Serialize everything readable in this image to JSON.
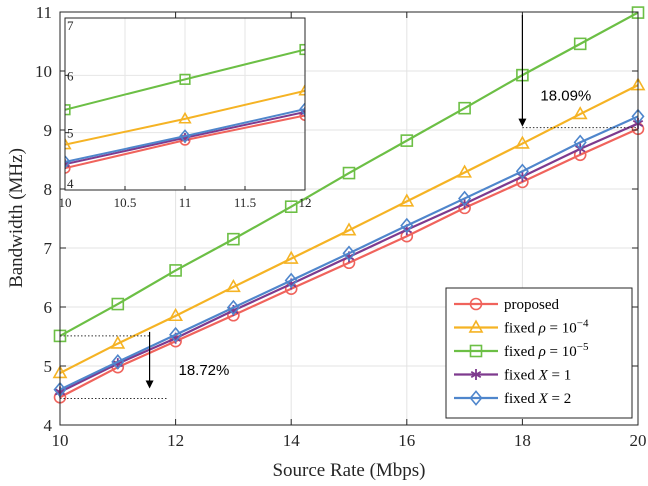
{
  "chart_data": {
    "type": "line",
    "title": "",
    "xlabel": "Source Rate (Mbps)",
    "ylabel": "Bandwidth (MHz)",
    "xlim": [
      10,
      20
    ],
    "ylim": [
      4,
      11
    ],
    "xticks": [
      "10",
      "12",
      "14",
      "16",
      "18",
      "20"
    ],
    "yticks": [
      "4",
      "5",
      "6",
      "7",
      "8",
      "9",
      "10",
      "11"
    ],
    "grid": true,
    "legend_position": "bottom-right",
    "x": [
      10,
      11,
      12,
      13,
      14,
      15,
      16,
      17,
      18,
      19,
      20
    ],
    "series": [
      {
        "name": "proposed",
        "legend": [
          "proposed"
        ],
        "color": "#f0635c",
        "marker": "circle",
        "values": [
          4.47,
          4.98,
          5.42,
          5.86,
          6.31,
          6.75,
          7.2,
          7.68,
          8.12,
          8.58,
          9.02
        ]
      },
      {
        "name": "fixed rho=10^-4",
        "legend": [
          "fixed ",
          "ρ",
          " = 10",
          "−4"
        ],
        "color": "#f5b324",
        "marker": "triangle",
        "values": [
          4.88,
          5.38,
          5.85,
          6.34,
          6.82,
          7.3,
          7.79,
          8.28,
          8.77,
          9.27,
          9.76
        ]
      },
      {
        "name": "fixed rho=10^-5",
        "legend": [
          "fixed ",
          "ρ",
          " = 10",
          "−5"
        ],
        "color": "#6cbf45",
        "marker": "square",
        "values": [
          5.51,
          6.05,
          6.62,
          7.15,
          7.7,
          8.27,
          8.82,
          9.37,
          9.93,
          10.46,
          10.99
        ]
      },
      {
        "name": "fixed X=1",
        "legend": [
          "fixed ",
          "X",
          " = 1"
        ],
        "color": "#7e3a8e",
        "marker": "star",
        "values": [
          4.56,
          5.04,
          5.47,
          5.94,
          6.39,
          6.85,
          7.31,
          7.75,
          8.21,
          8.68,
          9.11
        ]
      },
      {
        "name": "fixed X=2",
        "legend": [
          "fixed ",
          "X",
          " = 2"
        ],
        "color": "#4f86cc",
        "marker": "diamond",
        "values": [
          4.6,
          5.07,
          5.53,
          5.99,
          6.45,
          6.91,
          7.38,
          7.84,
          8.3,
          8.79,
          9.23
        ]
      }
    ],
    "inset": {
      "xlim": [
        10,
        12
      ],
      "ylim": [
        4,
        7
      ],
      "xticks": [
        "10",
        "10.5",
        "11",
        "11.5",
        "12"
      ],
      "yticks": [
        "4",
        "5",
        "6",
        "7"
      ],
      "x": [
        10,
        11,
        12
      ],
      "series_values": [
        [
          4.38,
          4.87,
          5.3
        ],
        [
          4.79,
          5.24,
          5.73
        ],
        [
          5.4,
          5.93,
          6.45
        ],
        [
          4.45,
          4.91,
          5.36
        ],
        [
          4.49,
          4.94,
          5.41
        ]
      ]
    },
    "annotations": [
      {
        "text": "18.09%",
        "at_x": 18,
        "between": [
          9.04,
          11
        ]
      },
      {
        "text": "18.72%",
        "at_x": 12,
        "between": [
          4.45,
          5.51
        ]
      }
    ]
  }
}
